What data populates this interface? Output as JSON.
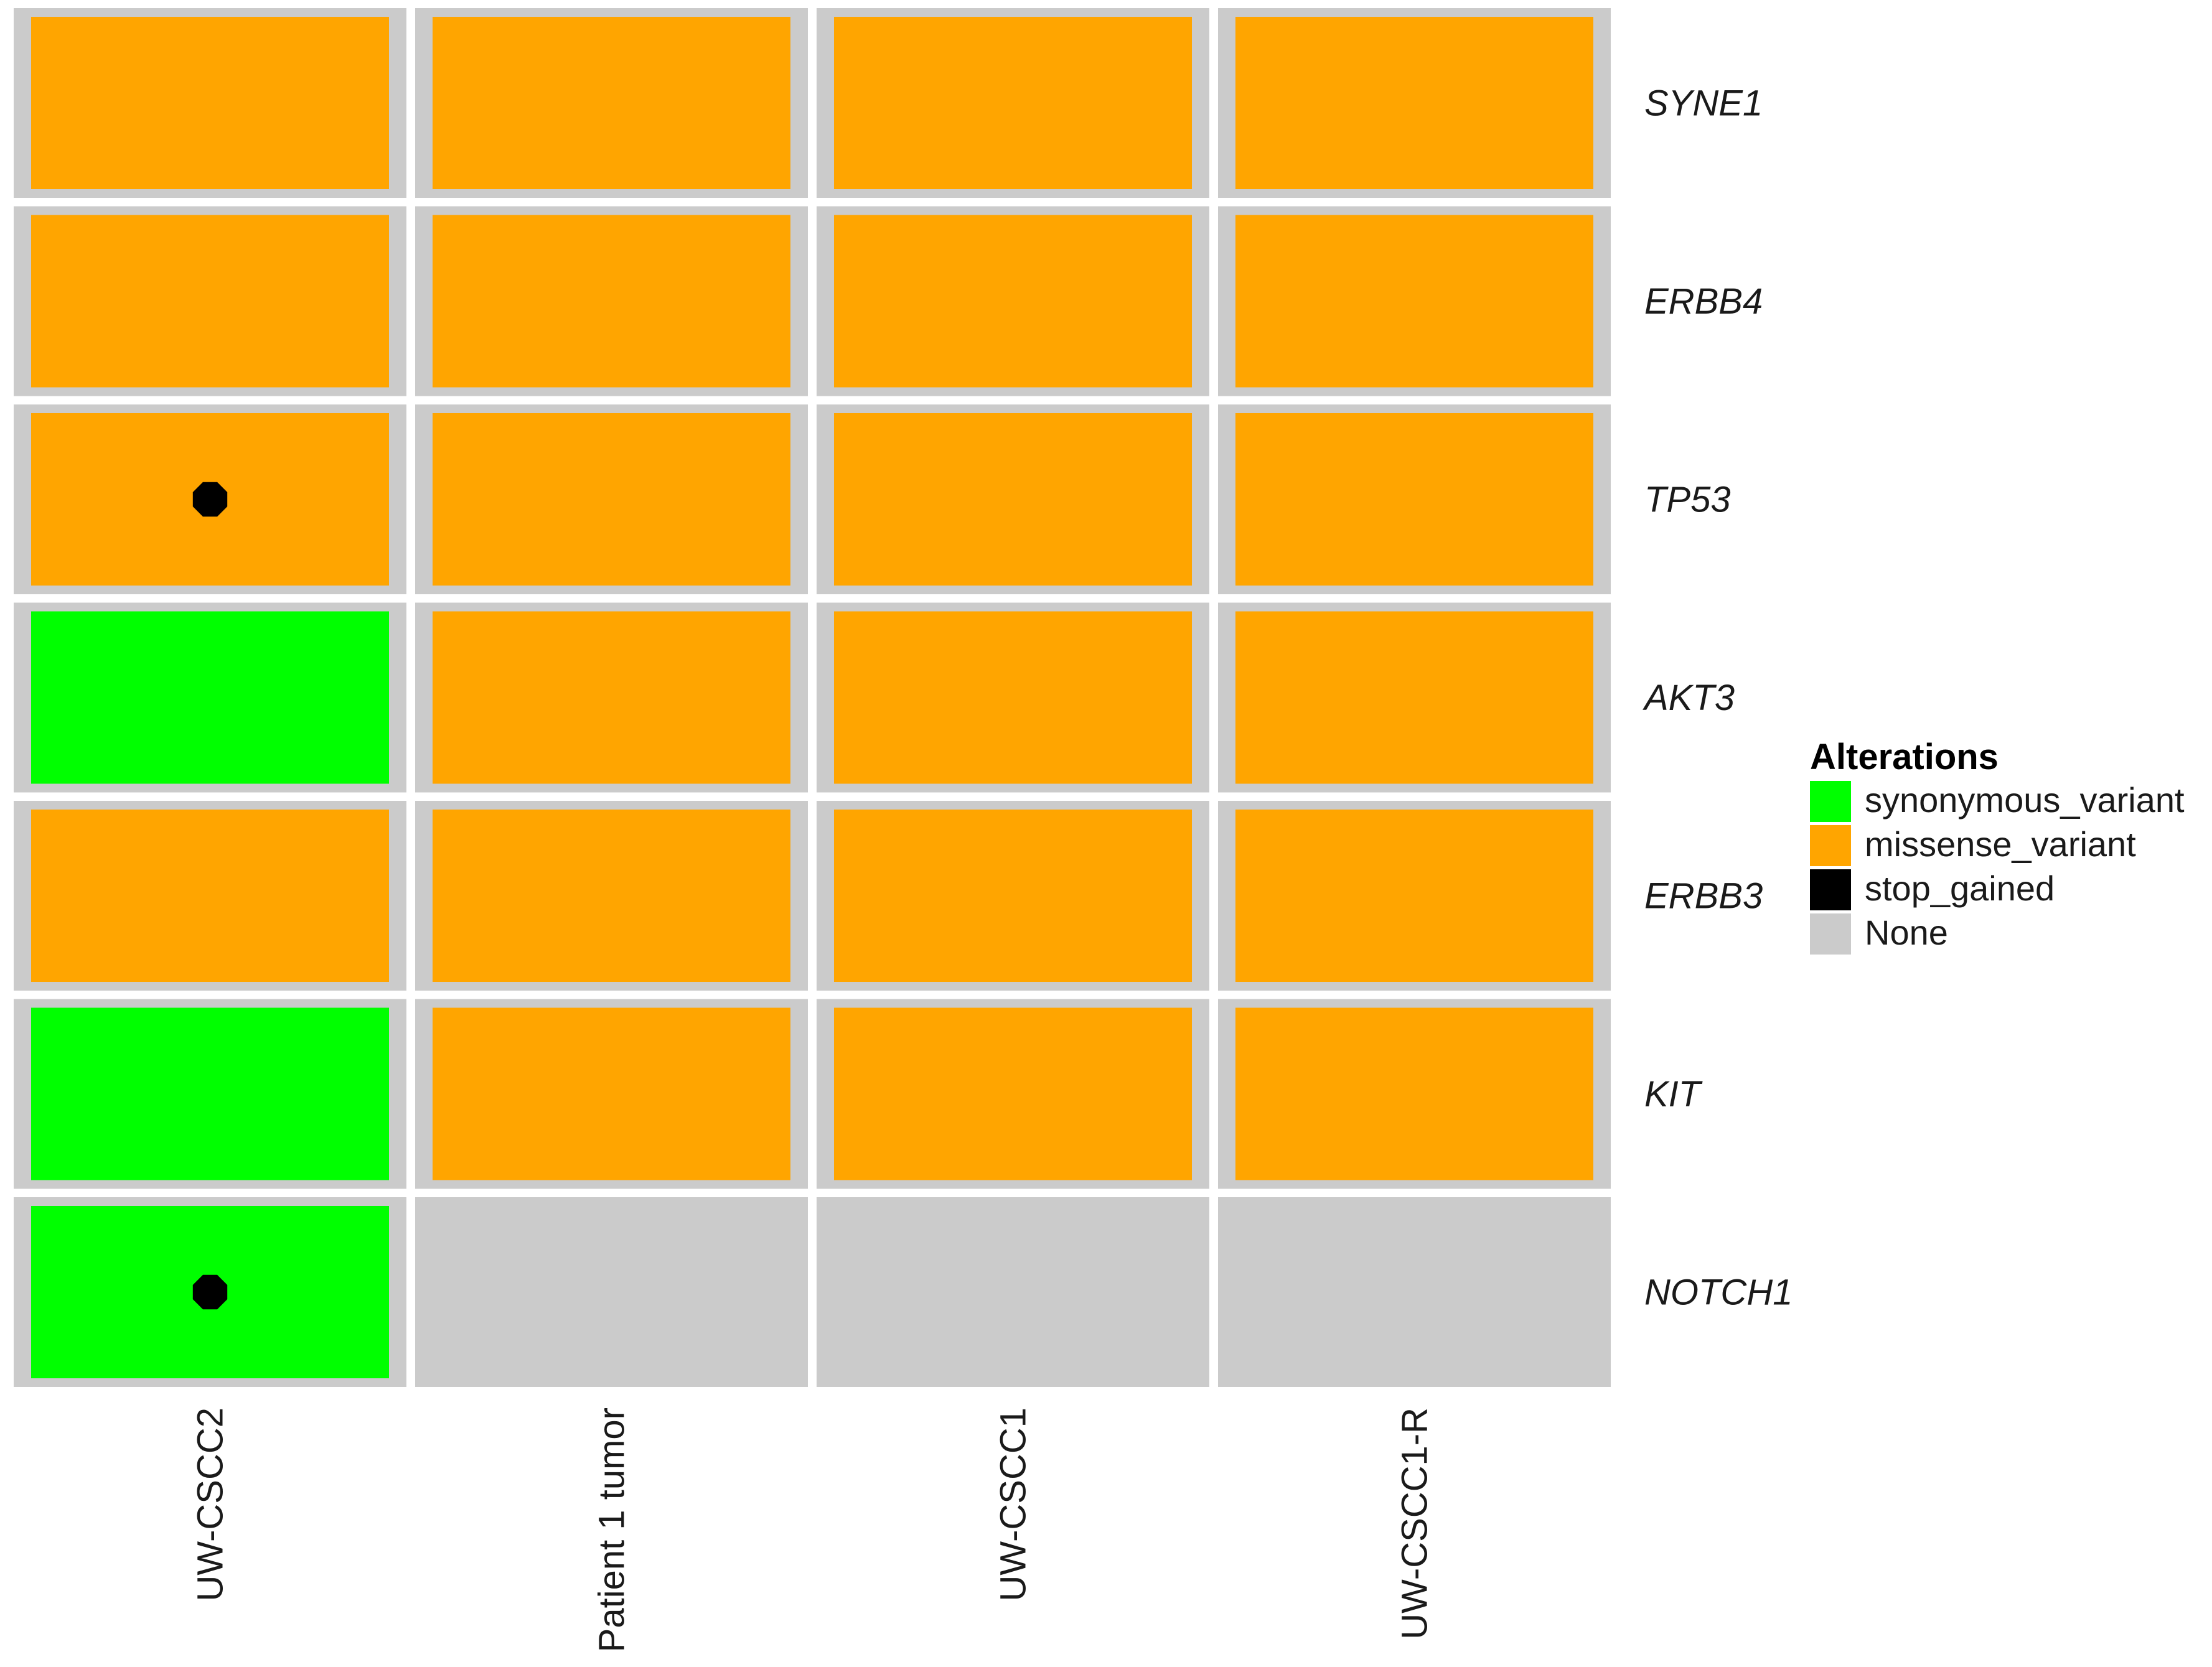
{
  "chart_data": {
    "type": "heatmap",
    "title": "",
    "samples": [
      "UW-CSCC2",
      "Patient 1 tumor",
      "UW-CSCC1",
      "UW-CSCC1-R"
    ],
    "genes": [
      "SYNE1",
      "ERBB4",
      "TP53",
      "AKT3",
      "ERBB3",
      "KIT",
      "NOTCH1"
    ],
    "cells": [
      [
        "missense_variant",
        "missense_variant",
        "missense_variant",
        "missense_variant"
      ],
      [
        "missense_variant",
        "missense_variant",
        "missense_variant",
        "missense_variant"
      ],
      [
        "missense_variant",
        "missense_variant",
        "missense_variant",
        "missense_variant"
      ],
      [
        "synonymous_variant",
        "missense_variant",
        "missense_variant",
        "missense_variant"
      ],
      [
        "missense_variant",
        "missense_variant",
        "missense_variant",
        "missense_variant"
      ],
      [
        "synonymous_variant",
        "missense_variant",
        "missense_variant",
        "missense_variant"
      ],
      [
        "synonymous_variant",
        "None",
        "None",
        "None"
      ]
    ],
    "stop_gained": [
      {
        "gene": "TP53",
        "sample": "UW-CSCC2"
      },
      {
        "gene": "NOTCH1",
        "sample": "UW-CSCC2"
      }
    ],
    "legend": {
      "title": "Alterations",
      "placement": "right",
      "entries": [
        {
          "label": "synonymous_variant",
          "color": "#00ff00"
        },
        {
          "label": "missense_variant",
          "color": "#ffa500"
        },
        {
          "label": "stop_gained",
          "color": "#000000"
        },
        {
          "label": "None",
          "color": "#cbcbcb"
        }
      ]
    },
    "colors": {
      "background_tile": "#cbcbcb",
      "grid_gap": "#ffffff",
      "stop_gained_marker": "#000000"
    }
  }
}
